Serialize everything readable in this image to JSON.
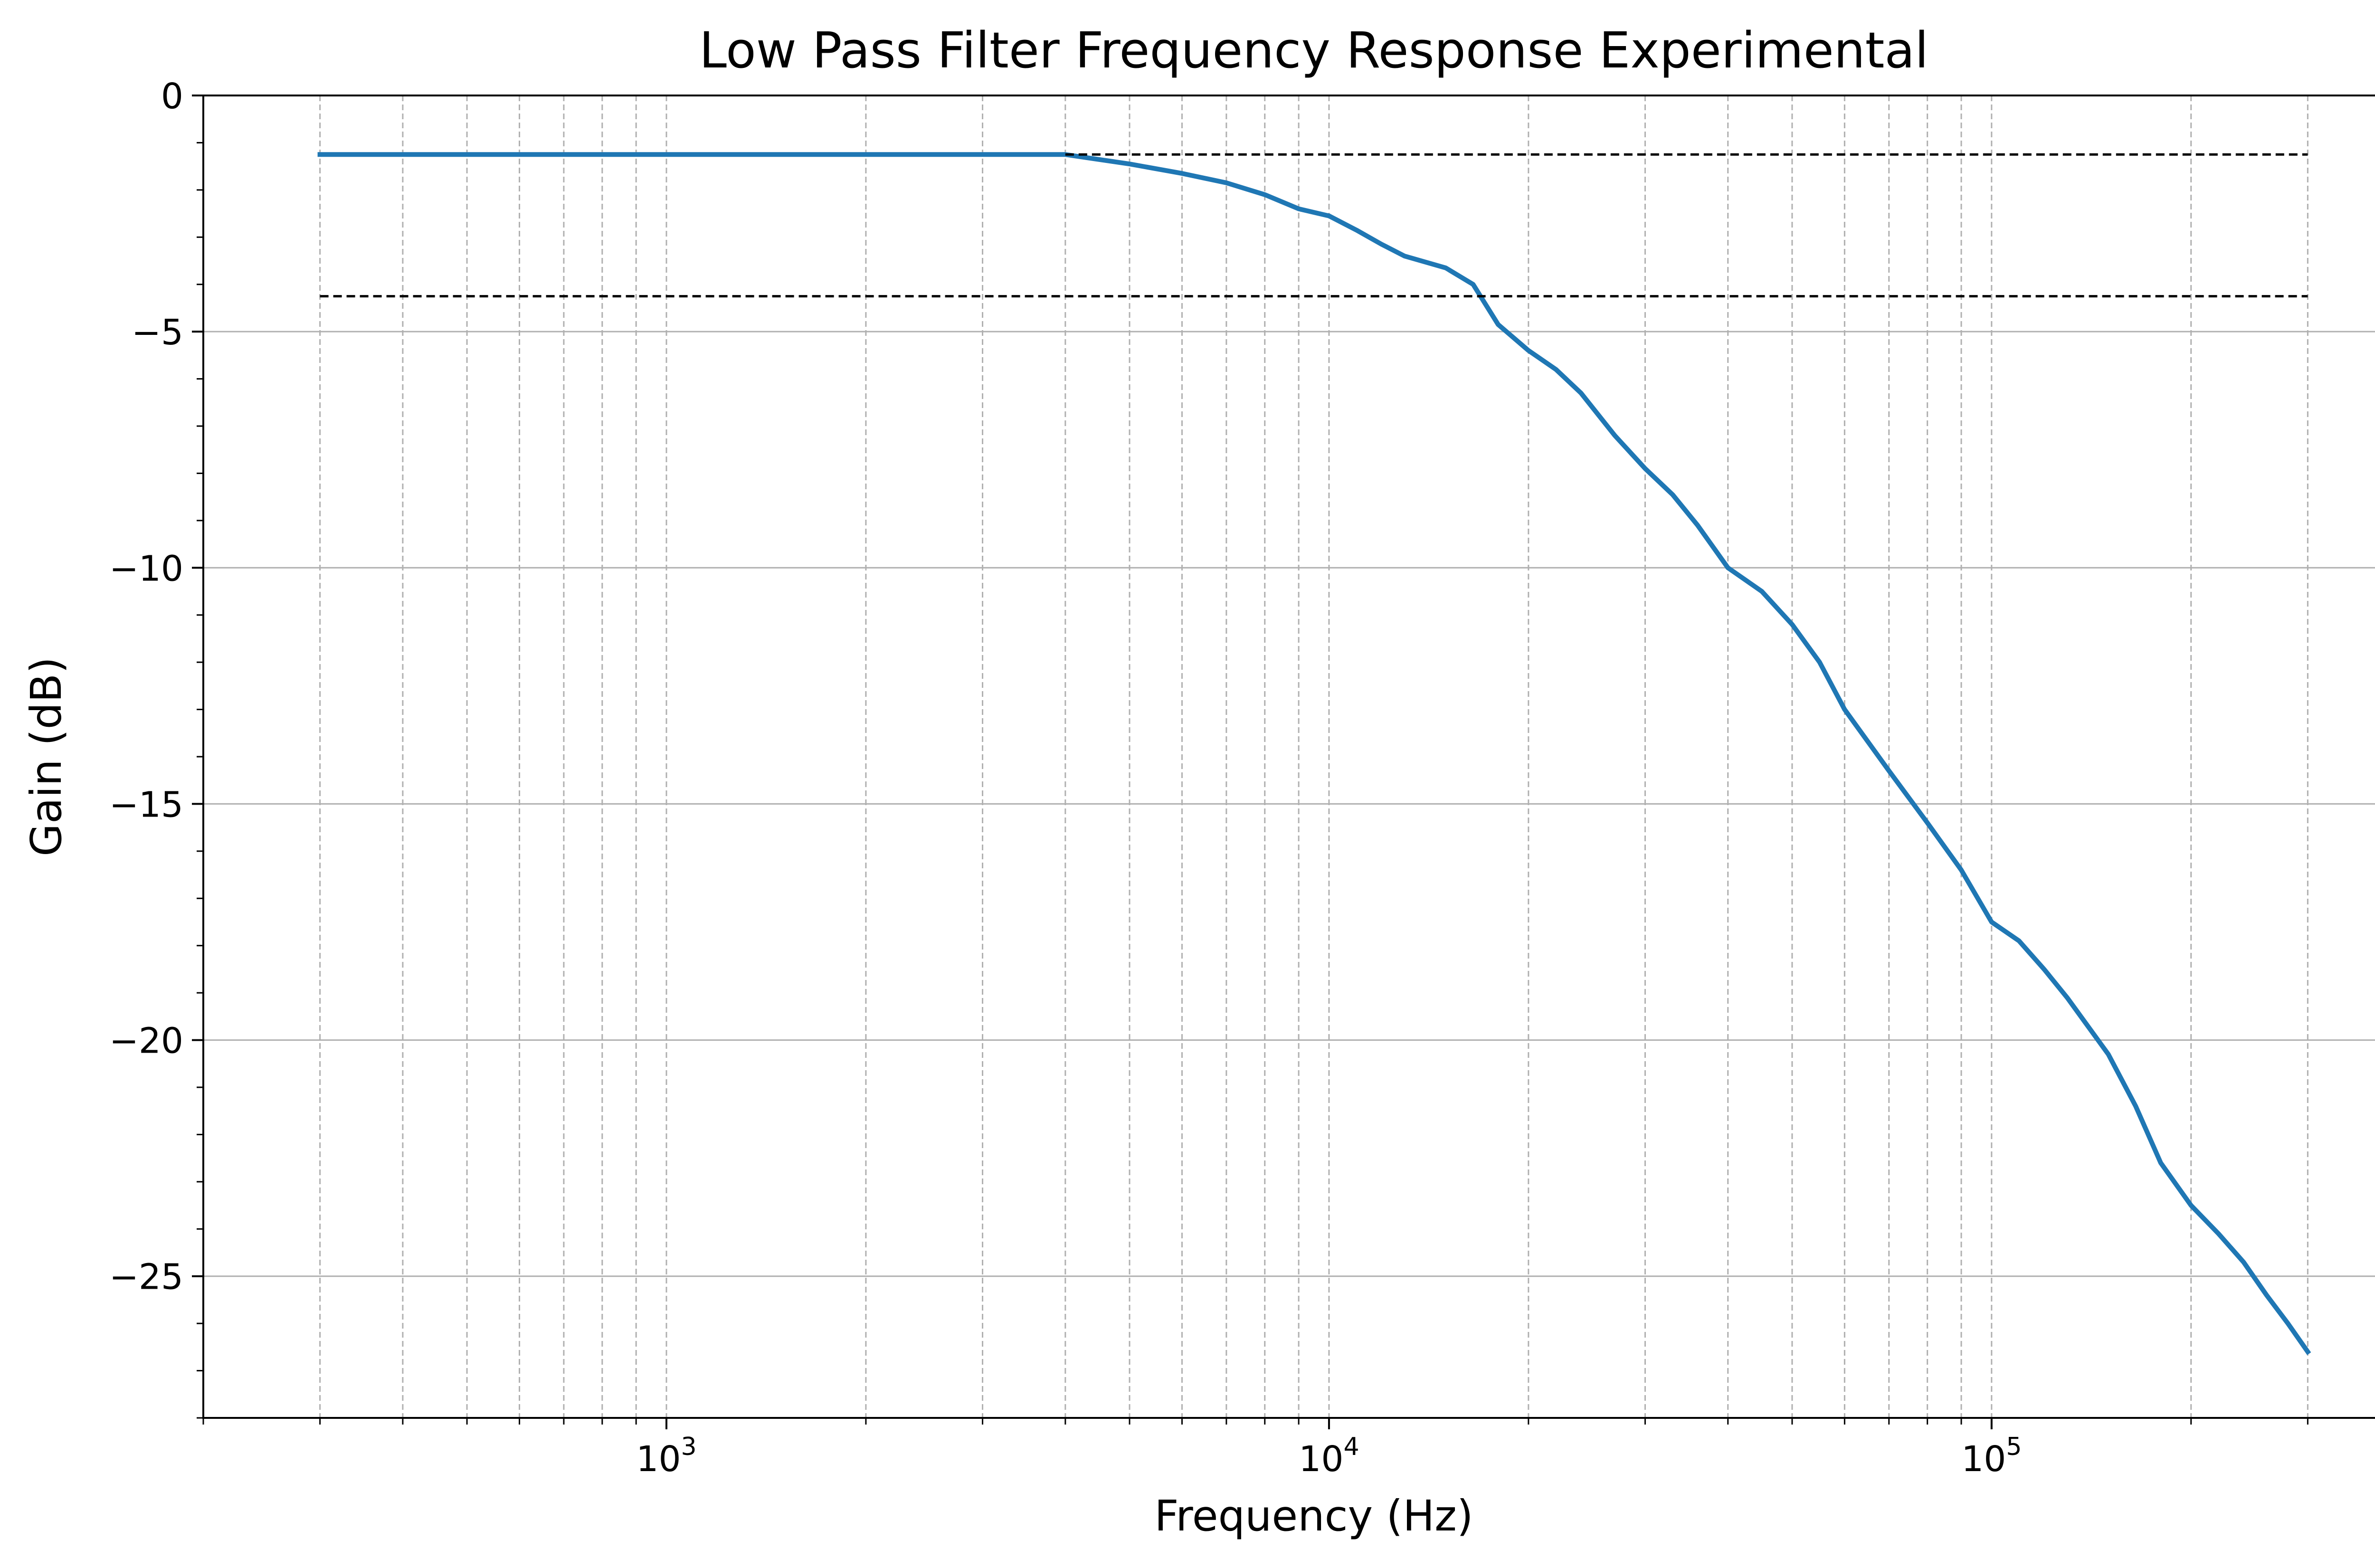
{
  "chart_data": {
    "type": "line",
    "title": "Low Pass Filter Frequency Response Experimental",
    "xlabel": "Frequency (Hz)",
    "ylabel": "Gain (dB)",
    "xscale": "log",
    "xlim": [
      200,
      450000
    ],
    "ylim": [
      -28,
      0
    ],
    "x_major_ticks": [
      {
        "value": 1000,
        "base": "10",
        "exp": "3"
      },
      {
        "value": 10000,
        "base": "10",
        "exp": "4"
      },
      {
        "value": 100000,
        "base": "10",
        "exp": "5"
      }
    ],
    "y_major_ticks": [
      {
        "value": 0,
        "label": "0"
      },
      {
        "value": -5,
        "label": "−5"
      },
      {
        "value": -10,
        "label": "−10"
      },
      {
        "value": -15,
        "label": "−15"
      },
      {
        "value": -20,
        "label": "−20"
      },
      {
        "value": -25,
        "label": "−25"
      }
    ],
    "grid": {
      "x_major": true,
      "x_minor": true,
      "y_major": true
    },
    "series": [
      {
        "color": "#1f77b4",
        "style": "solid",
        "x": [
          300,
          400,
          600,
          1000,
          2000,
          3000,
          4000,
          5000,
          6000,
          7000,
          8000,
          9000,
          10000,
          11000,
          12000,
          13000,
          15000,
          16500,
          18000,
          20000,
          22000,
          24000,
          27000,
          30000,
          33000,
          36000,
          40000,
          45000,
          50000,
          55000,
          60000,
          70000,
          80000,
          90000,
          100000,
          110000,
          120000,
          130000,
          150000,
          165000,
          180000,
          200000,
          220000,
          240000,
          260000,
          280000,
          300000
        ],
        "y": [
          -1.25,
          -1.25,
          -1.25,
          -1.25,
          -1.25,
          -1.25,
          -1.25,
          -1.45,
          -1.65,
          -1.85,
          -2.1,
          -2.4,
          -2.55,
          -2.85,
          -3.15,
          -3.4,
          -3.65,
          -4.0,
          -4.85,
          -5.4,
          -5.8,
          -6.3,
          -7.2,
          -7.9,
          -8.45,
          -9.1,
          -10.0,
          -10.5,
          -11.2,
          -12.0,
          -13.0,
          -14.3,
          -15.4,
          -16.4,
          -17.5,
          -17.9,
          -18.5,
          -19.1,
          -20.3,
          -21.4,
          -22.6,
          -23.5,
          -24.1,
          -24.7,
          -25.4,
          -26.0,
          -26.6
        ]
      },
      {
        "color": "#000000",
        "style": "dashed",
        "x": [
          4000,
          300000
        ],
        "y": [
          -1.25,
          -1.25
        ]
      },
      {
        "color": "#000000",
        "style": "dashed",
        "x": [
          300,
          300000
        ],
        "y": [
          -4.25,
          -4.25
        ]
      }
    ]
  }
}
